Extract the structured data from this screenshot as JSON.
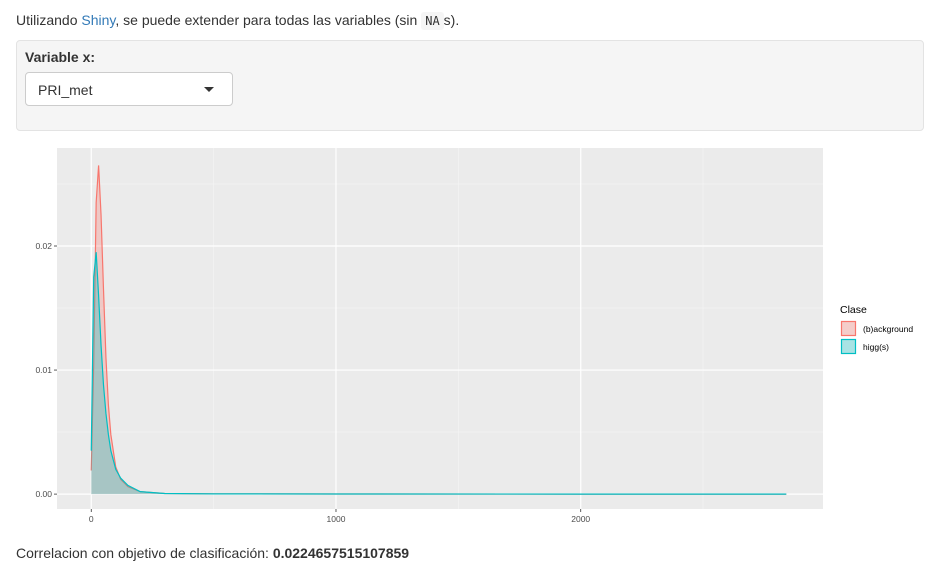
{
  "intro": {
    "prefix": "Utilizando ",
    "link_text": "Shiny",
    "middle": ", se puede extender para todas las variables (sin ",
    "code": "NA",
    "suffix": "s)."
  },
  "input": {
    "label": "Variable x:",
    "selected": "PRI_met"
  },
  "footer": {
    "prefix": "Correlacion con objetivo de clasificación: ",
    "value": "0.0224657515107859"
  },
  "chart_data": {
    "type": "area",
    "title": "",
    "xlabel": "",
    "ylabel": "",
    "xlim": [
      -140,
      2990
    ],
    "ylim": [
      -0.0012,
      0.0279
    ],
    "x_ticks": [
      0,
      1000,
      2000
    ],
    "x_tick_labels": [
      "0",
      "1000",
      "2000"
    ],
    "y_ticks": [
      0,
      0.01,
      0.02
    ],
    "y_tick_labels": [
      "0.00",
      "0.01",
      "0.02"
    ],
    "grid": true,
    "legend": {
      "title": "Clase",
      "position": "right"
    },
    "series": [
      {
        "name": "(b)ackground",
        "color": "#f8766d",
        "fill": "#f8766d",
        "x": [
          0,
          10,
          20,
          30,
          40,
          50,
          60,
          70,
          80,
          100,
          120,
          150,
          200,
          300,
          500,
          1000,
          2000,
          2840
        ],
        "values": [
          0.0019,
          0.0105,
          0.0235,
          0.0265,
          0.0225,
          0.0165,
          0.011,
          0.0072,
          0.0048,
          0.0022,
          0.0012,
          0.0006,
          0.0002,
          5e-05,
          2e-05,
          1e-05,
          0.0,
          0.0
        ]
      },
      {
        "name": "higg(s)",
        "color": "#00bfc4",
        "fill": "#00bfc4",
        "x": [
          0,
          10,
          20,
          30,
          40,
          50,
          60,
          70,
          80,
          100,
          120,
          150,
          200,
          300,
          500,
          1000,
          2000,
          2840
        ],
        "values": [
          0.0035,
          0.0175,
          0.0195,
          0.016,
          0.012,
          0.0088,
          0.0065,
          0.0048,
          0.0035,
          0.002,
          0.0013,
          0.0007,
          0.0002,
          5e-05,
          2e-05,
          1e-05,
          0.0,
          0.0
        ]
      }
    ]
  }
}
